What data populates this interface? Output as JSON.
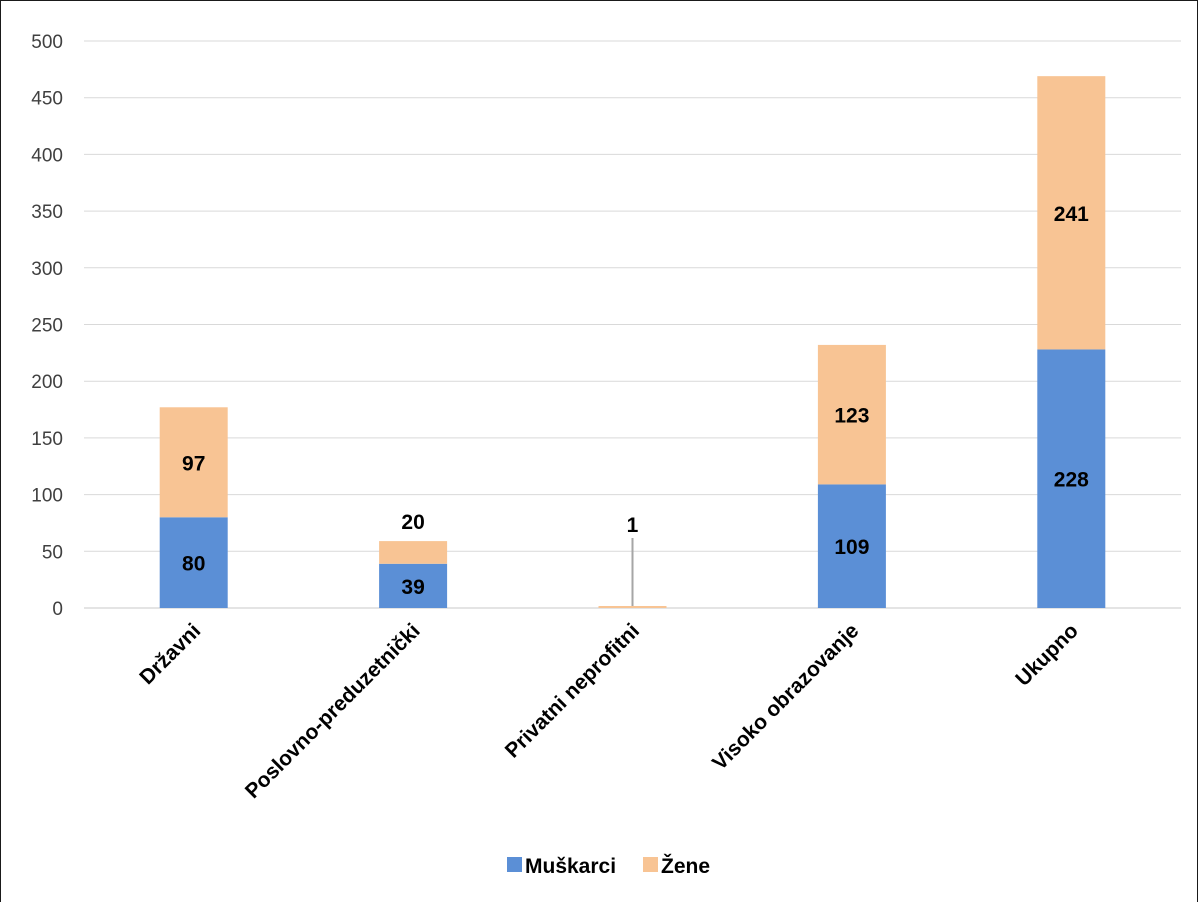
{
  "chart_data": {
    "type": "bar",
    "stacked": true,
    "categories": [
      "Državni",
      "Poslovno-preduzetnički",
      "Privatni neprofitni",
      "Visoko obrazovanje",
      "Ukupno"
    ],
    "series": [
      {
        "name": "Muškarci",
        "color": "#5B8FD6",
        "values": [
          80,
          39,
          0,
          109,
          228
        ]
      },
      {
        "name": "Žene",
        "color": "#F8C494",
        "values": [
          97,
          20,
          1,
          123,
          241
        ]
      }
    ],
    "yticks": [
      "0",
      "50",
      "100",
      "150",
      "200",
      "250",
      "300",
      "350",
      "400",
      "450",
      "500"
    ],
    "ylim": [
      0,
      500
    ],
    "grid": true,
    "legend": "bottom",
    "title": "",
    "xlabel": "",
    "ylabel": ""
  }
}
